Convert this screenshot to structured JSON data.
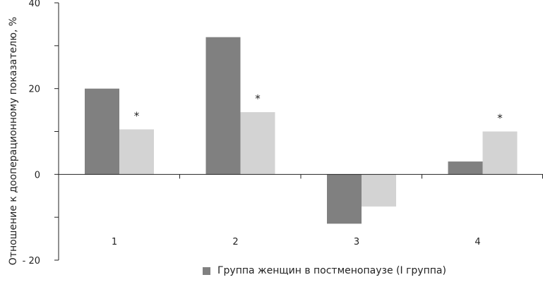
{
  "chart_data": {
    "type": "bar",
    "categories": [
      "1",
      "2",
      "3",
      "4"
    ],
    "series": [
      {
        "name": "Группа женщин в постменопаузе (I группа)",
        "color": "#808080",
        "values": [
          20,
          32,
          -11.5,
          3
        ]
      },
      {
        "color": "#d3d3d3",
        "values": [
          10.5,
          14.5,
          -7.5,
          10
        ]
      }
    ],
    "annotations": [
      {
        "category": "1",
        "series": 1,
        "text": "*"
      },
      {
        "category": "2",
        "series": 1,
        "text": "*"
      },
      {
        "category": "4",
        "series": 1,
        "text": "*"
      }
    ],
    "ylabel": "Отношение к дооперационному показателю, %",
    "xlabel": "",
    "ylim": [
      -20,
      40
    ],
    "yticks": [
      40,
      20,
      0,
      -20
    ],
    "ytick_labels": [
      "40",
      "20",
      "0",
      "- 20"
    ],
    "grid": false,
    "legend_position": "bottom"
  }
}
